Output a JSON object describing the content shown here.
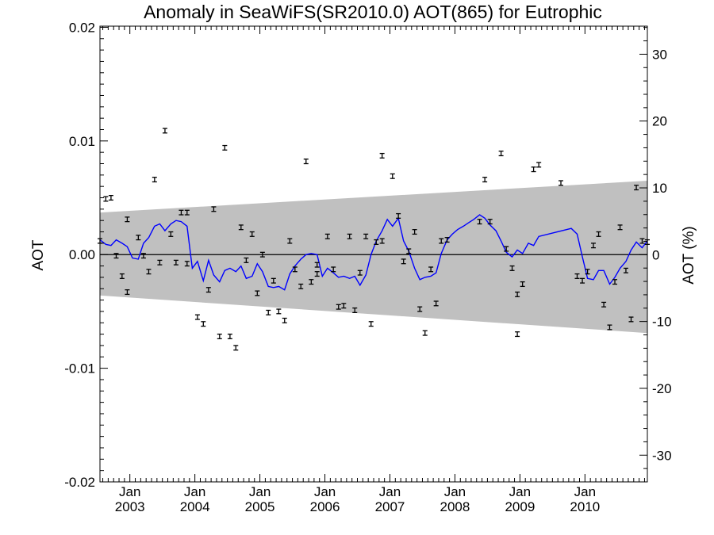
{
  "chart_data": {
    "type": "line",
    "title": "Anomaly in SeaWiFS(SR2010.0) AOT(865) for Eutrophic",
    "ylabel": "AOT",
    "y2label": "AOT (%)",
    "xlabel": "",
    "xlim": [
      2002.54,
      2010.96
    ],
    "ylim": [
      -0.02,
      0.0201
    ],
    "y2lim": [
      -34,
      34.2
    ],
    "y_ticks": [
      "0.02",
      "0.01",
      "0.00",
      "-0.01",
      "-0.02"
    ],
    "y_tick_values": [
      0.02,
      0.01,
      0.0,
      -0.01,
      -0.02
    ],
    "y2_ticks": [
      "30",
      "20",
      "10",
      "0",
      "-10",
      "-20",
      "-30"
    ],
    "y2_tick_values": [
      30,
      20,
      10,
      0,
      -10,
      -20,
      -30
    ],
    "x_ticks": [
      {
        "month": "Jan",
        "year": "2003",
        "x": 2003.0
      },
      {
        "month": "Jan",
        "year": "2004",
        "x": 2004.0
      },
      {
        "month": "Jan",
        "year": "2005",
        "x": 2005.0
      },
      {
        "month": "Jan",
        "year": "2006",
        "x": 2006.0
      },
      {
        "month": "Jan",
        "year": "2007",
        "x": 2007.0
      },
      {
        "month": "Jan",
        "year": "2008",
        "x": 2008.0
      },
      {
        "month": "Jan",
        "year": "2009",
        "x": 2009.0
      },
      {
        "month": "Jan",
        "year": "2010",
        "x": 2010.0
      }
    ],
    "grid": false,
    "colors": {
      "band": "#c0c0c0",
      "line": "#0000ff",
      "points": "#000000",
      "zero_line": "#000000"
    },
    "band": {
      "x": [
        2002.54,
        2010.96
      ],
      "upper": [
        0.0037,
        0.0065
      ],
      "lower": [
        -0.0036,
        -0.0069
      ]
    },
    "series": [
      {
        "kind": "points_with_errorbars",
        "errorbar": 0.0002,
        "points": [
          [
            2002.54,
            0.0012
          ],
          [
            2002.63,
            0.0049
          ],
          [
            2002.71,
            0.005
          ],
          [
            2002.79,
            -0.0001
          ],
          [
            2002.88,
            -0.0019
          ],
          [
            2002.96,
            -0.0033
          ],
          [
            2002.96,
            0.0031
          ],
          [
            2003.13,
            0.0015
          ],
          [
            2003.21,
            -0.0001
          ],
          [
            2003.29,
            -0.0015
          ],
          [
            2003.38,
            0.0066
          ],
          [
            2003.46,
            -0.0007
          ],
          [
            2003.54,
            0.0109
          ],
          [
            2003.63,
            0.0018
          ],
          [
            2003.71,
            -0.0007
          ],
          [
            2003.79,
            0.0037
          ],
          [
            2003.88,
            0.0037
          ],
          [
            2003.88,
            -0.0008
          ],
          [
            2004.04,
            -0.0055
          ],
          [
            2004.13,
            -0.0061
          ],
          [
            2004.21,
            -0.0031
          ],
          [
            2004.29,
            0.004
          ],
          [
            2004.38,
            -0.0072
          ],
          [
            2004.46,
            0.0094
          ],
          [
            2004.54,
            -0.0072
          ],
          [
            2004.63,
            -0.0082
          ],
          [
            2004.71,
            0.0024
          ],
          [
            2004.79,
            -0.0005
          ],
          [
            2004.88,
            0.0018
          ],
          [
            2004.96,
            -0.0034
          ],
          [
            2005.04,
            0.0
          ],
          [
            2005.13,
            -0.0051
          ],
          [
            2005.21,
            -0.0023
          ],
          [
            2005.29,
            -0.005
          ],
          [
            2005.38,
            -0.0058
          ],
          [
            2005.46,
            0.0012
          ],
          [
            2005.54,
            -0.0013
          ],
          [
            2005.63,
            -0.0028
          ],
          [
            2005.71,
            0.0082
          ],
          [
            2005.79,
            -0.0024
          ],
          [
            2005.88,
            -0.0017
          ],
          [
            2005.88,
            -0.0009
          ],
          [
            2006.04,
            0.0016
          ],
          [
            2006.13,
            -0.0013
          ],
          [
            2006.21,
            -0.0046
          ],
          [
            2006.29,
            -0.0045
          ],
          [
            2006.38,
            0.0016
          ],
          [
            2006.46,
            -0.0049
          ],
          [
            2006.54,
            -0.0016
          ],
          [
            2006.63,
            0.0016
          ],
          [
            2006.71,
            -0.0061
          ],
          [
            2006.79,
            0.0011
          ],
          [
            2006.88,
            0.0087
          ],
          [
            2006.88,
            0.0012
          ],
          [
            2007.04,
            0.0069
          ],
          [
            2007.13,
            0.0034
          ],
          [
            2007.21,
            -0.0006
          ],
          [
            2007.29,
            0.0003
          ],
          [
            2007.38,
            0.002
          ],
          [
            2007.46,
            -0.0048
          ],
          [
            2007.54,
            -0.0069
          ],
          [
            2007.63,
            -0.0013
          ],
          [
            2007.71,
            -0.0043
          ],
          [
            2007.79,
            0.0012
          ],
          [
            2007.88,
            0.0013
          ],
          [
            2008.38,
            0.0029
          ],
          [
            2008.46,
            0.0066
          ],
          [
            2008.54,
            0.0029
          ],
          [
            2008.71,
            0.0089
          ],
          [
            2008.79,
            0.0005
          ],
          [
            2008.88,
            -0.0012
          ],
          [
            2008.96,
            -0.0035
          ],
          [
            2008.96,
            -0.007
          ],
          [
            2009.04,
            -0.0026
          ],
          [
            2009.21,
            0.0075
          ],
          [
            2009.29,
            0.0079
          ],
          [
            2009.63,
            0.0063
          ],
          [
            2009.88,
            -0.0019
          ],
          [
            2009.96,
            -0.0023
          ],
          [
            2010.04,
            -0.0015
          ],
          [
            2010.13,
            0.0008
          ],
          [
            2010.21,
            0.0018
          ],
          [
            2010.29,
            -0.0044
          ],
          [
            2010.38,
            -0.0064
          ],
          [
            2010.46,
            -0.0024
          ],
          [
            2010.54,
            0.0024
          ],
          [
            2010.63,
            -0.0014
          ],
          [
            2010.71,
            -0.0057
          ],
          [
            2010.79,
            0.0059
          ],
          [
            2010.88,
            0.0012
          ],
          [
            2010.96,
            0.0011
          ]
        ]
      },
      {
        "kind": "line",
        "points": [
          [
            2002.54,
            0.0013
          ],
          [
            2002.63,
            0.0009
          ],
          [
            2002.71,
            0.0008
          ],
          [
            2002.79,
            0.0013
          ],
          [
            2002.88,
            0.001
          ],
          [
            2002.96,
            0.0007
          ],
          [
            2003.04,
            -0.0003
          ],
          [
            2003.13,
            -0.0004
          ],
          [
            2003.21,
            0.001
          ],
          [
            2003.29,
            0.0015
          ],
          [
            2003.38,
            0.0025
          ],
          [
            2003.46,
            0.0027
          ],
          [
            2003.54,
            0.0021
          ],
          [
            2003.63,
            0.0027
          ],
          [
            2003.71,
            0.003
          ],
          [
            2003.79,
            0.0029
          ],
          [
            2003.88,
            0.0025
          ],
          [
            2003.96,
            -0.0012
          ],
          [
            2004.04,
            -0.0006
          ],
          [
            2004.13,
            -0.0023
          ],
          [
            2004.21,
            -0.0005
          ],
          [
            2004.29,
            -0.0018
          ],
          [
            2004.38,
            -0.0024
          ],
          [
            2004.46,
            -0.0014
          ],
          [
            2004.54,
            -0.0012
          ],
          [
            2004.63,
            -0.0015
          ],
          [
            2004.71,
            -0.001
          ],
          [
            2004.79,
            -0.0021
          ],
          [
            2004.88,
            -0.0019
          ],
          [
            2004.96,
            -0.0008
          ],
          [
            2005.04,
            -0.0015
          ],
          [
            2005.13,
            -0.0028
          ],
          [
            2005.21,
            -0.0029
          ],
          [
            2005.29,
            -0.0028
          ],
          [
            2005.38,
            -0.0031
          ],
          [
            2005.46,
            -0.0017
          ],
          [
            2005.54,
            -0.001
          ],
          [
            2005.63,
            -0.0004
          ],
          [
            2005.71,
            0.0
          ],
          [
            2005.79,
            0.0001
          ],
          [
            2005.88,
            0.0
          ],
          [
            2005.96,
            -0.0019
          ],
          [
            2006.04,
            -0.0012
          ],
          [
            2006.13,
            -0.0016
          ],
          [
            2006.21,
            -0.002
          ],
          [
            2006.29,
            -0.0019
          ],
          [
            2006.38,
            -0.0021
          ],
          [
            2006.46,
            -0.0019
          ],
          [
            2006.54,
            -0.0027
          ],
          [
            2006.63,
            -0.0018
          ],
          [
            2006.71,
            0.0
          ],
          [
            2006.79,
            0.0012
          ],
          [
            2006.88,
            0.0021
          ],
          [
            2006.96,
            0.0031
          ],
          [
            2007.04,
            0.0025
          ],
          [
            2007.13,
            0.0032
          ],
          [
            2007.21,
            0.0012
          ],
          [
            2007.29,
            0.0003
          ],
          [
            2007.38,
            -0.0012
          ],
          [
            2007.46,
            -0.0022
          ],
          [
            2007.54,
            -0.002
          ],
          [
            2007.63,
            -0.0019
          ],
          [
            2007.71,
            -0.0016
          ],
          [
            2007.79,
            0.0001
          ],
          [
            2007.88,
            0.0013
          ],
          [
            2007.96,
            0.0018
          ],
          [
            2008.04,
            0.0022
          ],
          [
            2008.13,
            0.0025
          ],
          [
            2008.21,
            0.0028
          ],
          [
            2008.29,
            0.0031
          ],
          [
            2008.38,
            0.0035
          ],
          [
            2008.46,
            0.0032
          ],
          [
            2008.54,
            0.0026
          ],
          [
            2008.63,
            0.0021
          ],
          [
            2008.71,
            0.0012
          ],
          [
            2008.79,
            0.0002
          ],
          [
            2008.88,
            -0.0002
          ],
          [
            2008.96,
            0.0004
          ],
          [
            2009.04,
            0.0001
          ],
          [
            2009.13,
            0.001
          ],
          [
            2009.21,
            0.0008
          ],
          [
            2009.29,
            0.0016
          ],
          [
            2009.79,
            0.0023
          ],
          [
            2009.88,
            0.0018
          ],
          [
            2009.96,
            -0.0002
          ],
          [
            2010.04,
            -0.0021
          ],
          [
            2010.13,
            -0.0022
          ],
          [
            2010.21,
            -0.0014
          ],
          [
            2010.29,
            -0.0014
          ],
          [
            2010.38,
            -0.0026
          ],
          [
            2010.46,
            -0.002
          ],
          [
            2010.54,
            -0.0012
          ],
          [
            2010.63,
            -0.0006
          ],
          [
            2010.71,
            0.0004
          ],
          [
            2010.79,
            0.0011
          ],
          [
            2010.88,
            0.0006
          ],
          [
            2010.96,
            0.0012
          ]
        ]
      }
    ]
  }
}
